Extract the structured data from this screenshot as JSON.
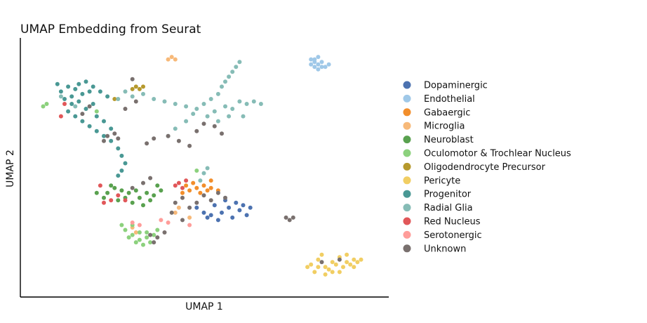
{
  "chart_data": {
    "type": "scatter",
    "title": "UMAP Embedding from Seurat",
    "xlabel": "UMAP 1",
    "ylabel": "UMAP 2",
    "xlim": [
      0,
      100
    ],
    "ylim": [
      0,
      100
    ],
    "grid": false,
    "ticks": false,
    "legend_position": "right",
    "series": [
      {
        "name": "Dopaminergic",
        "color": "#4c72b0",
        "points": [
          [
            52,
            30
          ],
          [
            55,
            31
          ],
          [
            58,
            29
          ],
          [
            60,
            32
          ],
          [
            62,
            30
          ],
          [
            57,
            33
          ],
          [
            54,
            28
          ],
          [
            59,
            35
          ],
          [
            61,
            34
          ],
          [
            63,
            33
          ],
          [
            56,
            36
          ],
          [
            53,
            34
          ],
          [
            50,
            31
          ],
          [
            48,
            33
          ],
          [
            51,
            29
          ]
        ]
      },
      {
        "name": "Endothelial",
        "color": "#9fc8e8",
        "points": [
          [
            80,
            93
          ],
          [
            81,
            92
          ],
          [
            82,
            94
          ],
          [
            81,
            90
          ],
          [
            82,
            91
          ],
          [
            83,
            92
          ],
          [
            80,
            91
          ],
          [
            84,
            90
          ],
          [
            85,
            91
          ],
          [
            81,
            93
          ],
          [
            82,
            89
          ],
          [
            83,
            90
          ]
        ]
      },
      {
        "name": "Gabaergic",
        "color": "#f28e2b",
        "points": [
          [
            46,
            40
          ],
          [
            48,
            41
          ],
          [
            50,
            42
          ],
          [
            51,
            40
          ],
          [
            49,
            39
          ],
          [
            47,
            43
          ],
          [
            52,
            41
          ],
          [
            45,
            42
          ],
          [
            54,
            40
          ],
          [
            52,
            44
          ],
          [
            44,
            39
          ]
        ]
      },
      {
        "name": "Microglia",
        "color": "#f7b979",
        "points": [
          [
            41,
            94
          ],
          [
            42,
            93
          ],
          [
            40,
            93
          ],
          [
            43,
            33
          ],
          [
            42,
            31
          ],
          [
            46,
            29
          ],
          [
            30,
            25
          ],
          [
            31,
            23
          ]
        ]
      },
      {
        "name": "Neuroblast",
        "color": "#59a14f",
        "points": [
          [
            23,
            39
          ],
          [
            25,
            41
          ],
          [
            27,
            40
          ],
          [
            29,
            39
          ],
          [
            31,
            40
          ],
          [
            24,
            42
          ],
          [
            26,
            36
          ],
          [
            28,
            37
          ],
          [
            30,
            35
          ],
          [
            32,
            37
          ],
          [
            34,
            39
          ],
          [
            36,
            38
          ],
          [
            38,
            40
          ],
          [
            22,
            37
          ],
          [
            33,
            34
          ],
          [
            35,
            36
          ],
          [
            20,
            39
          ],
          [
            37,
            42
          ]
        ]
      },
      {
        "name": "Oculomotor & Trochlear Nucleus",
        "color": "#8cd17d",
        "points": [
          [
            28,
            24
          ],
          [
            30,
            22
          ],
          [
            32,
            20
          ],
          [
            34,
            21
          ],
          [
            36,
            22
          ],
          [
            31,
            19
          ],
          [
            33,
            18
          ],
          [
            35,
            19
          ],
          [
            29,
            21
          ],
          [
            27,
            26
          ],
          [
            34,
            23
          ],
          [
            37,
            24
          ],
          [
            30,
            26
          ],
          [
            32,
            23
          ],
          [
            5,
            74
          ],
          [
            6,
            75
          ],
          [
            20,
            72
          ],
          [
            48,
            48
          ]
        ]
      },
      {
        "name": "Oligodendrocyte Precursor",
        "color": "#b6992d",
        "points": [
          [
            31,
            82
          ],
          [
            32,
            81
          ],
          [
            33,
            82
          ],
          [
            30,
            81
          ],
          [
            25,
            77
          ]
        ]
      },
      {
        "name": "Pericyte",
        "color": "#f1ce63",
        "points": [
          [
            80,
            10
          ],
          [
            82,
            12
          ],
          [
            84,
            9
          ],
          [
            86,
            11
          ],
          [
            88,
            13
          ],
          [
            90,
            11
          ],
          [
            92,
            12
          ],
          [
            94,
            12
          ],
          [
            83,
            14
          ],
          [
            85,
            8
          ],
          [
            87,
            10
          ],
          [
            89,
            9
          ],
          [
            81,
            7
          ],
          [
            86,
            7
          ],
          [
            91,
            10
          ],
          [
            93,
            11
          ],
          [
            82,
            9
          ],
          [
            84,
            6
          ],
          [
            88,
            7
          ],
          [
            90,
            14
          ],
          [
            79,
            9
          ],
          [
            92,
            9
          ]
        ]
      },
      {
        "name": "Progenitor",
        "color": "#499894",
        "points": [
          [
            10,
            80
          ],
          [
            12,
            82
          ],
          [
            14,
            81
          ],
          [
            16,
            79
          ],
          [
            18,
            80
          ],
          [
            11,
            77
          ],
          [
            13,
            75
          ],
          [
            15,
            76
          ],
          [
            17,
            73
          ],
          [
            19,
            75
          ],
          [
            12,
            72
          ],
          [
            14,
            70
          ],
          [
            16,
            68
          ],
          [
            18,
            66
          ],
          [
            20,
            64
          ],
          [
            22,
            62
          ],
          [
            24,
            60
          ],
          [
            26,
            57
          ],
          [
            27,
            54
          ],
          [
            28,
            51
          ],
          [
            27,
            48
          ],
          [
            26,
            46
          ],
          [
            15,
            83
          ],
          [
            17,
            84
          ],
          [
            19,
            82
          ],
          [
            21,
            80
          ],
          [
            23,
            78
          ],
          [
            9,
            83
          ],
          [
            13,
            78
          ],
          [
            20,
            70
          ],
          [
            24,
            65
          ],
          [
            22,
            68
          ]
        ]
      },
      {
        "name": "Radial Glia",
        "color": "#86bcb6",
        "points": [
          [
            30,
            78
          ],
          [
            33,
            79
          ],
          [
            36,
            77
          ],
          [
            39,
            76
          ],
          [
            42,
            75
          ],
          [
            45,
            74
          ],
          [
            48,
            73
          ],
          [
            50,
            75
          ],
          [
            52,
            77
          ],
          [
            54,
            79
          ],
          [
            55,
            82
          ],
          [
            56,
            84
          ],
          [
            57,
            86
          ],
          [
            58,
            88
          ],
          [
            59,
            90
          ],
          [
            60,
            92
          ],
          [
            53,
            72
          ],
          [
            56,
            74
          ],
          [
            58,
            73
          ],
          [
            60,
            76
          ],
          [
            62,
            75
          ],
          [
            64,
            76
          ],
          [
            66,
            75
          ],
          [
            51,
            70
          ],
          [
            54,
            68
          ],
          [
            57,
            70
          ],
          [
            45,
            68
          ],
          [
            42,
            65
          ],
          [
            40,
            62
          ],
          [
            50,
            47
          ],
          [
            51,
            49
          ],
          [
            49,
            44
          ],
          [
            10,
            78
          ],
          [
            14,
            74
          ],
          [
            26,
            77
          ],
          [
            28,
            80
          ],
          [
            47,
            71
          ],
          [
            61,
            70
          ]
        ]
      },
      {
        "name": "Red Nucleus",
        "color": "#e15759",
        "points": [
          [
            11,
            75
          ],
          [
            10,
            70
          ],
          [
            22,
            35
          ],
          [
            24,
            36
          ],
          [
            26,
            38
          ],
          [
            21,
            42
          ],
          [
            43,
            43
          ],
          [
            44,
            41
          ],
          [
            45,
            44
          ],
          [
            42,
            42
          ],
          [
            28,
            36
          ]
        ]
      },
      {
        "name": "Serotonergic",
        "color": "#ff9d9a",
        "points": [
          [
            30,
            27
          ],
          [
            32,
            26
          ],
          [
            38,
            28
          ],
          [
            40,
            27
          ],
          [
            46,
            26
          ]
        ]
      },
      {
        "name": "Unknown",
        "color": "#79706e",
        "points": [
          [
            22,
            60
          ],
          [
            23,
            62
          ],
          [
            25,
            63
          ],
          [
            26,
            61
          ],
          [
            34,
            59
          ],
          [
            36,
            61
          ],
          [
            40,
            62
          ],
          [
            43,
            60
          ],
          [
            46,
            58
          ],
          [
            48,
            64
          ],
          [
            50,
            67
          ],
          [
            53,
            66
          ],
          [
            55,
            63
          ],
          [
            35,
            22
          ],
          [
            37,
            21
          ],
          [
            39,
            23
          ],
          [
            36,
            19
          ],
          [
            42,
            35
          ],
          [
            44,
            37
          ],
          [
            46,
            33
          ],
          [
            48,
            35
          ],
          [
            50,
            38
          ],
          [
            52,
            36
          ],
          [
            54,
            39
          ],
          [
            56,
            37
          ],
          [
            41,
            31
          ],
          [
            44,
            28
          ],
          [
            30,
            41
          ],
          [
            33,
            43
          ],
          [
            35,
            45
          ],
          [
            73,
            29
          ],
          [
            74,
            28
          ],
          [
            75,
            29
          ],
          [
            83,
            11
          ],
          [
            88,
            12
          ],
          [
            30,
            85
          ],
          [
            16,
            71
          ],
          [
            18,
            74
          ],
          [
            28,
            73
          ],
          [
            31,
            76
          ]
        ]
      }
    ]
  }
}
